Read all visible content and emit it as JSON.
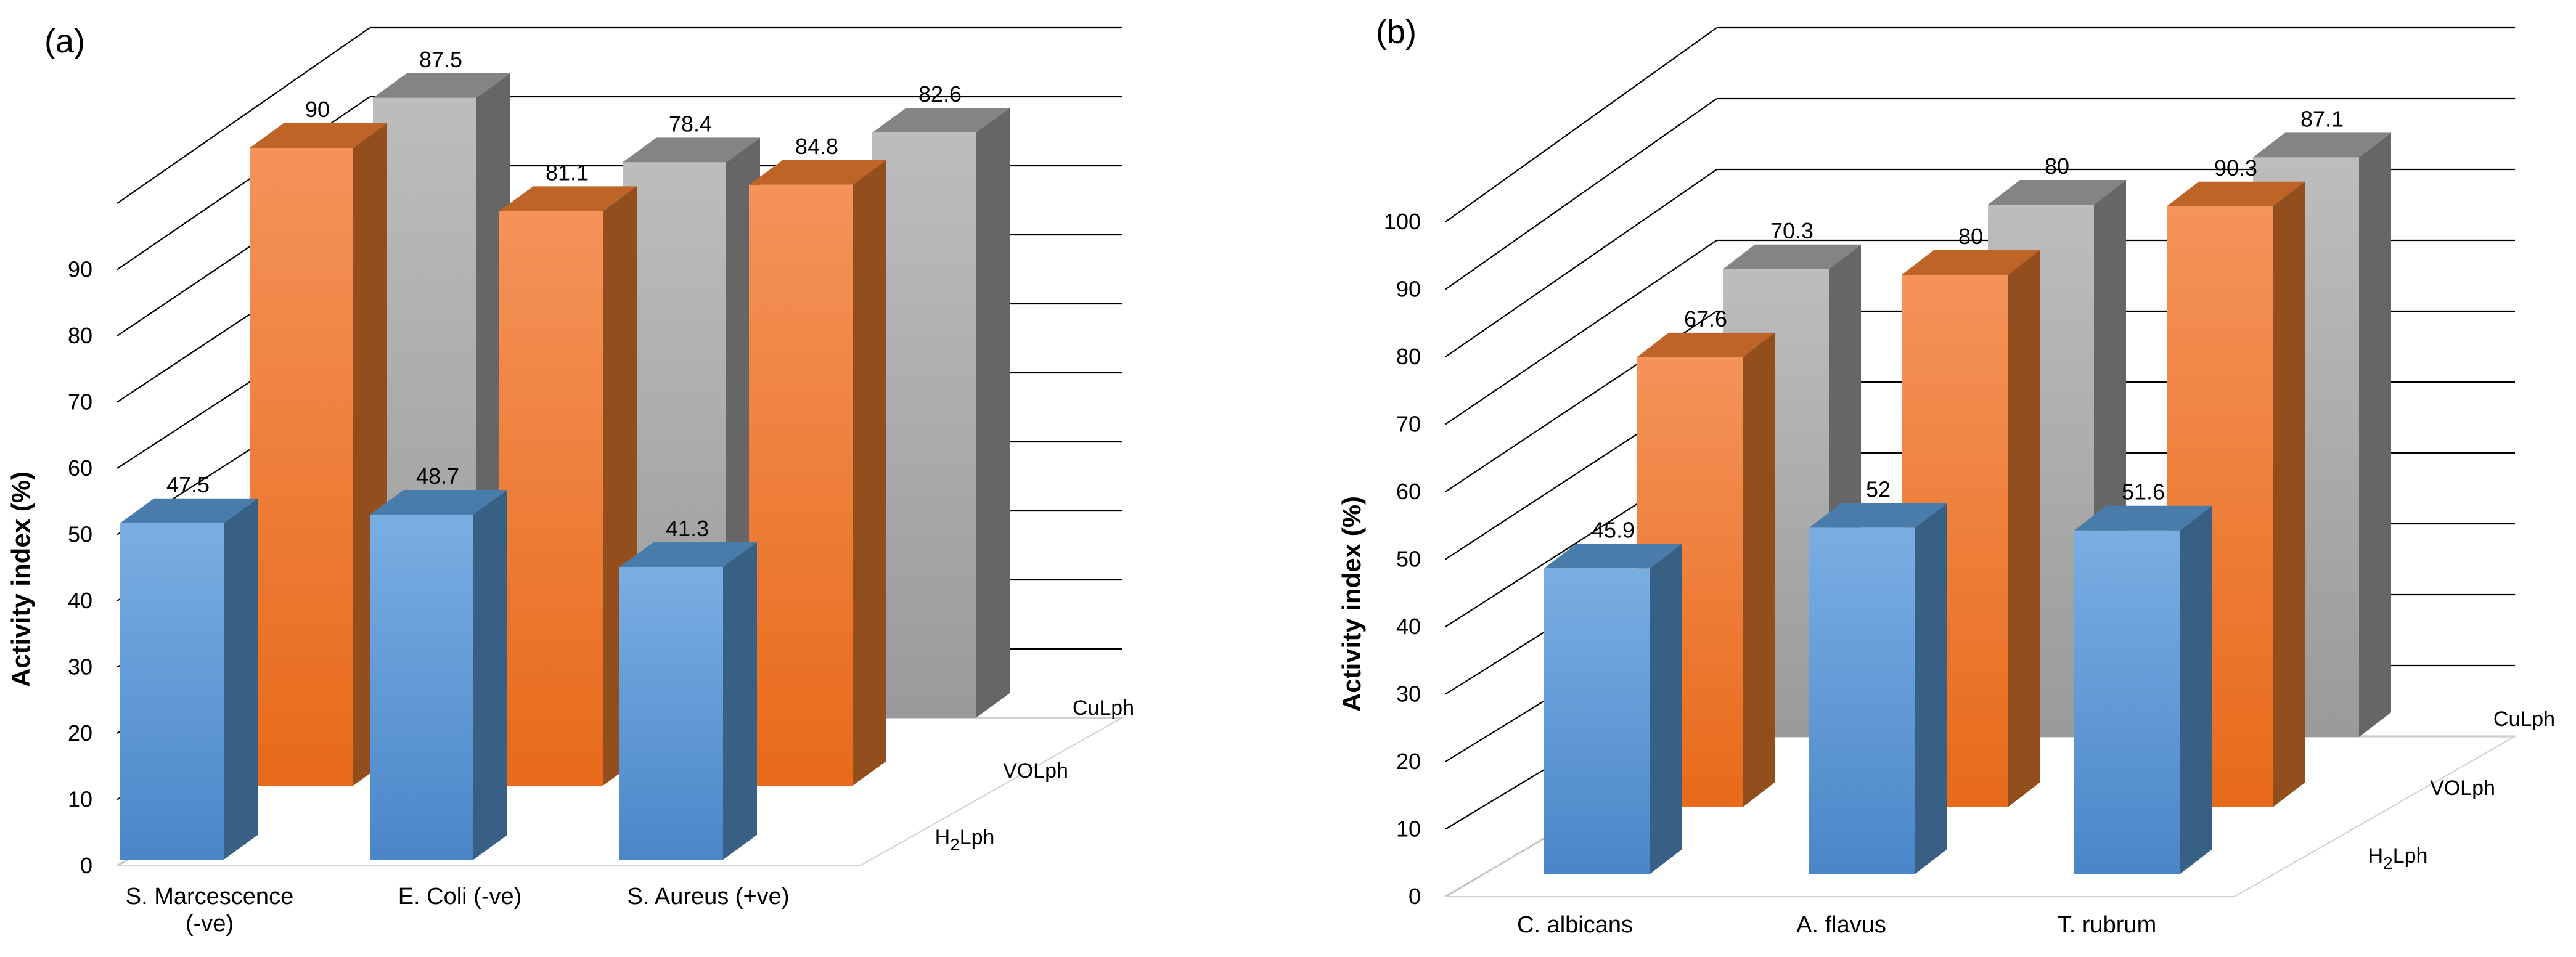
{
  "chart_data": [
    {
      "type": "bar",
      "panel_label": "(a)",
      "title": "",
      "xlabel": "",
      "ylabel": "Activity index (%)",
      "ylim": [
        0,
        100
      ],
      "yticks": [
        0,
        10,
        20,
        30,
        40,
        50,
        60,
        70,
        80,
        90
      ],
      "categories": [
        "S. Marcescence|(-ve)",
        "E. Coli (-ve)",
        "S. Aureus (+ve)"
      ],
      "series": [
        {
          "name": "H2Lph",
          "values": [
            47.5,
            48.7,
            41.3
          ],
          "color": "#5B9BD5"
        },
        {
          "name": "VOLph",
          "values": [
            90,
            81.1,
            84.8
          ],
          "color": "#ED7D31"
        },
        {
          "name": "CuLph",
          "values": [
            87.5,
            78.4,
            82.6
          ],
          "color": "#A5A5A5"
        }
      ]
    },
    {
      "type": "bar",
      "panel_label": "(b)",
      "title": "",
      "xlabel": "",
      "ylabel": "Activity index (%)",
      "ylim": [
        0,
        100
      ],
      "yticks": [
        0,
        10,
        20,
        30,
        40,
        50,
        60,
        70,
        80,
        90,
        100
      ],
      "categories": [
        "C. albicans",
        "A. flavus",
        "T. rubrum"
      ],
      "series": [
        {
          "name": "H2Lph",
          "values": [
            45.9,
            52,
            51.6
          ],
          "color": "#5B9BD5"
        },
        {
          "name": "VOLph",
          "values": [
            67.6,
            80,
            90.3
          ],
          "color": "#ED7D31"
        },
        {
          "name": "CuLph",
          "values": [
            70.3,
            80,
            87.1
          ],
          "color": "#A5A5A5"
        }
      ]
    }
  ]
}
